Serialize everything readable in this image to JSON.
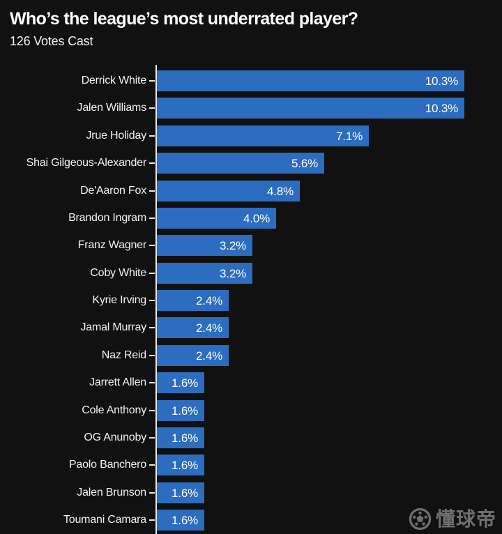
{
  "title": "Who’s the league’s most underrated player?",
  "subtitle": "126 Votes Cast",
  "watermark": {
    "icon": "soccer-ball-icon",
    "text": "懂球帝"
  },
  "colors": {
    "background": "#111111",
    "bar": "#2c6dbf",
    "axis": "#e8e8e8",
    "title_text": "#ffffff",
    "label_text": "#f2f2f2",
    "value_text": "#ffffff",
    "watermark_text": "#6f6f6f"
  },
  "chart_data": {
    "type": "bar",
    "orientation": "horizontal",
    "title": "Who’s the league’s most underrated player?",
    "subtitle": "126 Votes Cast",
    "xlabel": "",
    "ylabel": "",
    "xlim": [
      0,
      11.55
    ],
    "grid": false,
    "legend": false,
    "bar_color": "#2c6dbf",
    "categories": [
      "Derrick White",
      "Jalen Williams",
      "Jrue Holiday",
      "Shai Gilgeous-Alexander",
      "De'Aaron Fox",
      "Brandon Ingram",
      "Franz Wagner",
      "Coby White",
      "Kyrie Irving",
      "Jamal Murray",
      "Naz Reid",
      "Jarrett Allen",
      "Cole Anthony",
      "OG Anunoby",
      "Paolo Banchero",
      "Jalen Brunson",
      "Toumani Camara"
    ],
    "values": [
      10.3,
      10.3,
      7.1,
      5.6,
      4.8,
      4.0,
      3.2,
      3.2,
      2.4,
      2.4,
      2.4,
      1.6,
      1.6,
      1.6,
      1.6,
      1.6,
      1.6
    ],
    "value_labels": [
      "10.3%",
      "10.3%",
      "7.1%",
      "5.6%",
      "4.8%",
      "4.0%",
      "3.2%",
      "3.2%",
      "2.4%",
      "2.4%",
      "2.4%",
      "1.6%",
      "1.6%",
      "1.6%",
      "1.6%",
      "1.6%",
      "1.6%"
    ]
  }
}
